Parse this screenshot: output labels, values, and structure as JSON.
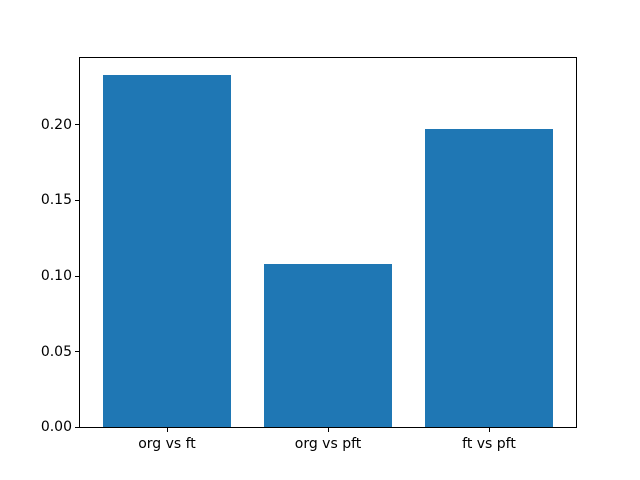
{
  "chart_data": {
    "type": "bar",
    "categories": [
      "org vs ft",
      "org vs pft",
      "ft vs pft"
    ],
    "values": [
      0.233,
      0.108,
      0.197
    ],
    "bar_color": "#1f77b4",
    "axis_color": "#000000",
    "background_color": "#ffffff",
    "ylim": [
      0,
      0.2443
    ],
    "yticks": {
      "values": [
        0,
        0.05,
        0.1,
        0.15,
        0.2
      ],
      "labels": [
        "0.00",
        "0.05",
        "0.10",
        "0.15",
        "0.20"
      ]
    },
    "grid": false,
    "legend": "none"
  }
}
